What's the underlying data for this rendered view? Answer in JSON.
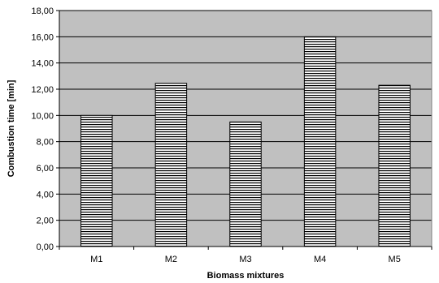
{
  "chart_data": {
    "type": "bar",
    "categories": [
      "M1",
      "M2",
      "M3",
      "M4",
      "M5"
    ],
    "values": [
      10.0,
      12.45,
      9.5,
      16.0,
      12.3
    ],
    "xlabel": "Biomass mixtures",
    "ylabel": "Combustion time [min]",
    "ylim": [
      0,
      18
    ],
    "ytick_step": 2,
    "ytick_labels": [
      "0,00",
      "2,00",
      "4,00",
      "6,00",
      "8,00",
      "10,00",
      "12,00",
      "14,00",
      "16,00",
      "18,00"
    ],
    "grid": true,
    "legend": "none",
    "colors": {
      "plot_background": "#c0c0c0",
      "bar_fill": "#ffffff",
      "bar_hatch": "#000000",
      "gridline": "#000000"
    }
  }
}
